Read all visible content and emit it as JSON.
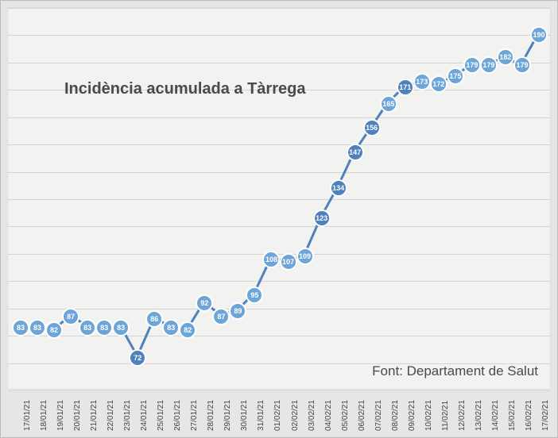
{
  "chart": {
    "type": "line",
    "title": "Incidència acumulada a Tàrrega",
    "source": "Font: Departament de Salut",
    "dates": [
      "17/01/21",
      "18/01/21",
      "19/01/21",
      "20/01/21",
      "21/01/21",
      "22/01/21",
      "23/01/21",
      "24/01/21",
      "25/01/21",
      "26/01/21",
      "27/01/21",
      "28/01/21",
      "29/01/21",
      "30/01/21",
      "31/01/21",
      "01/02/21",
      "02/02/21",
      "03/02/21",
      "04/02/21",
      "05/02/21",
      "06/02/21",
      "07/02/21",
      "08/02/21",
      "09/02/21",
      "10/02/21",
      "11/02/21",
      "12/02/21",
      "13/02/21",
      "14/02/21",
      "15/02/21",
      "16/02/21",
      "17/02/21"
    ],
    "values": [
      83,
      83,
      82,
      87,
      83,
      83,
      83,
      72,
      86,
      83,
      82,
      92,
      87,
      89,
      95,
      108,
      107,
      109,
      123,
      134,
      147,
      156,
      165,
      171,
      173,
      172,
      175,
      179,
      179,
      182,
      179,
      190
    ],
    "ylim": [
      60,
      200
    ],
    "gridlines_count": 14,
    "point_colors": [
      "#6ea5d8",
      "#6ea5d8",
      "#6ea5d8",
      "#6ea5d8",
      "#6ea5d8",
      "#6ea5d8",
      "#6ea5d8",
      "#4f81bd",
      "#6ea5d8",
      "#6ea5d8",
      "#6ea5d8",
      "#6ea5d8",
      "#6ea5d8",
      "#6ea5d8",
      "#6ea5d8",
      "#6ea5d8",
      "#6ea5d8",
      "#6ea5d8",
      "#4f81bd",
      "#4f81bd",
      "#4f81bd",
      "#4f81bd",
      "#6ea5d8",
      "#4f81bd",
      "#6ea5d8",
      "#6ea5d8",
      "#6ea5d8",
      "#6ea5d8",
      "#6ea5d8",
      "#6ea5d8",
      "#6ea5d8",
      "#6ea5d8"
    ],
    "line_color": "#4f81bd",
    "line_width": 3,
    "background_color": "#f2f2f0",
    "outer_background": "#e6e6e6",
    "grid_color": "#d4d4d2",
    "title_fontsize": 20,
    "label_fontsize": 10,
    "source_fontsize": 17,
    "point_radius": 11
  }
}
